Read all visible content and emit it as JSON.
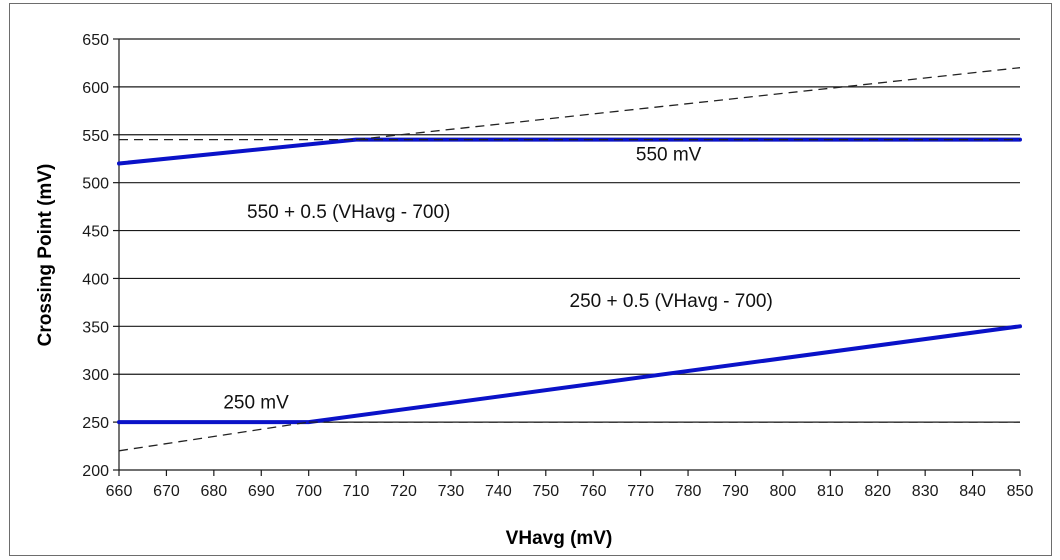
{
  "chart_data": {
    "type": "line",
    "title": "",
    "xlabel": "VHavg (mV)",
    "ylabel": "Crossing Point (mV)",
    "xlim": [
      660,
      850
    ],
    "ylim": [
      200,
      650
    ],
    "x_ticks": [
      660,
      670,
      680,
      690,
      700,
      710,
      720,
      730,
      740,
      750,
      760,
      770,
      780,
      790,
      800,
      810,
      820,
      830,
      840,
      850
    ],
    "y_ticks": [
      200,
      250,
      300,
      350,
      400,
      450,
      500,
      550,
      600,
      650
    ],
    "grid": "horizontal",
    "series": [
      {
        "style": "solid",
        "color": "#0a12c8",
        "x": [
          660,
          710,
          850
        ],
        "y": [
          520,
          545,
          545
        ]
      },
      {
        "style": "solid",
        "color": "#0a12c8",
        "x": [
          660,
          700,
          850
        ],
        "y": [
          250,
          250,
          350
        ]
      },
      {
        "style": "dashed",
        "color": "#222222",
        "x": [
          660,
          850
        ],
        "y": [
          545,
          545
        ]
      },
      {
        "style": "dashed",
        "color": "#222222",
        "x": [
          710,
          850
        ],
        "y": [
          545,
          620
        ]
      },
      {
        "style": "dashed",
        "color": "#222222",
        "x": [
          660,
          700
        ],
        "y": [
          220,
          250
        ]
      },
      {
        "style": "dashed",
        "color": "#222222",
        "x": [
          700,
          850
        ],
        "y": [
          250,
          250
        ]
      }
    ],
    "annotations": [
      {
        "text": "550 mV",
        "x": 769,
        "y": 523
      },
      {
        "text": "550 + 0.5 (VHavg - 700)",
        "x": 687,
        "y": 463
      },
      {
        "text": "250 + 0.5 (VHavg - 700)",
        "x": 755,
        "y": 370
      },
      {
        "text": "250 mV",
        "x": 682,
        "y": 264
      }
    ]
  }
}
